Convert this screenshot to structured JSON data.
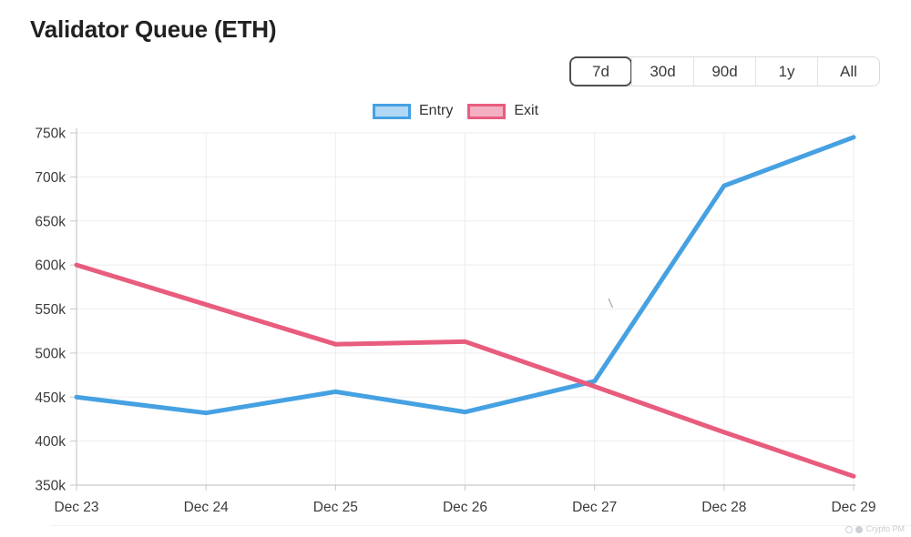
{
  "page": {
    "title": "Validator Queue (ETH)"
  },
  "range_selector": {
    "options": [
      {
        "label": "7d",
        "selected": true
      },
      {
        "label": "30d",
        "selected": false
      },
      {
        "label": "90d",
        "selected": false
      },
      {
        "label": "1y",
        "selected": false
      },
      {
        "label": "All",
        "selected": false
      }
    ],
    "selected_border_color": "#4f4f4f"
  },
  "legend": [
    {
      "label": "Entry",
      "border_color": "#46a1e2",
      "fill_color": "#b0d8f4"
    },
    {
      "label": "Exit",
      "border_color": "#e85c7e",
      "fill_color": "#f4b0c3"
    }
  ],
  "watermark": {
    "text": "Crypto PM"
  },
  "chart_data": {
    "type": "line",
    "title": "Validator Queue (ETH)",
    "categories": [
      "Dec 23",
      "Dec 24",
      "Dec 25",
      "Dec 26",
      "Dec 27",
      "Dec 28",
      "Dec 29"
    ],
    "series": [
      {
        "name": "Entry",
        "color": "#46a1e2",
        "values": [
          450000,
          432000,
          456000,
          433000,
          468000,
          690000,
          745000
        ]
      },
      {
        "name": "Exit",
        "color": "#e85c7e",
        "values": [
          600000,
          555000,
          510000,
          513000,
          462000,
          410000,
          360000
        ]
      }
    ],
    "ylim": [
      350000,
      750000
    ],
    "yticks": [
      {
        "value": 350000,
        "label": "350k"
      },
      {
        "value": 400000,
        "label": "400k"
      },
      {
        "value": 450000,
        "label": "450k"
      },
      {
        "value": 500000,
        "label": "500k"
      },
      {
        "value": 550000,
        "label": "550k"
      },
      {
        "value": 600000,
        "label": "600k"
      },
      {
        "value": 650000,
        "label": "650k"
      },
      {
        "value": 700000,
        "label": "700k"
      },
      {
        "value": 750000,
        "label": "750k"
      }
    ],
    "xlabel": "",
    "ylabel": "",
    "grid": true,
    "legend_position": "top",
    "line_width": 5,
    "grid_color": "#ededed",
    "axis_color": "#c9c9c9",
    "tick_label_color": "#3b3b3b"
  }
}
